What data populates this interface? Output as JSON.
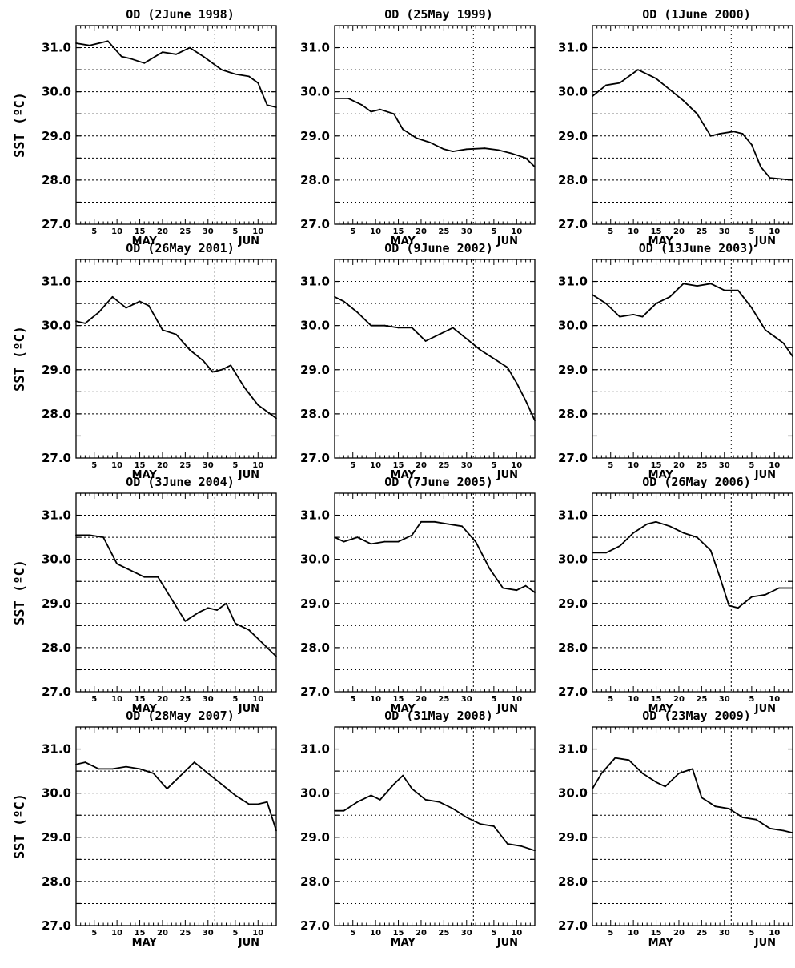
{
  "figure": {
    "y_axis_label": "SST (ºC)",
    "y_ticks": [
      "27.0",
      "28.0",
      "29.0",
      "30.0",
      "31.0"
    ],
    "x_day_ticks": [
      "5",
      "10",
      "15",
      "20",
      "25",
      "30",
      "5",
      "10"
    ],
    "months": [
      "MAY",
      "JUN"
    ]
  },
  "chart_data": [
    {
      "type": "line",
      "title": "OD (2June 1998)",
      "ylabel": "SST (ºC)",
      "ylim": [
        27.0,
        31.5
      ],
      "xlim": [
        "May 1",
        "Jun 14"
      ],
      "grid": true,
      "x": [
        "May 1",
        "May 4",
        "May 8",
        "May 11",
        "May 13",
        "May 16",
        "May 20",
        "May 23",
        "May 26",
        "May 29",
        "Jun 2",
        "Jun 5",
        "Jun 8",
        "Jun 10",
        "Jun 12",
        "Jun 14"
      ],
      "values": [
        31.1,
        31.05,
        31.15,
        30.8,
        30.75,
        30.65,
        30.9,
        30.85,
        31.0,
        30.8,
        30.5,
        30.4,
        30.35,
        30.2,
        29.7,
        29.65
      ]
    },
    {
      "type": "line",
      "title": "OD (25May 1999)",
      "ylabel": "SST (ºC)",
      "ylim": [
        27.0,
        31.5
      ],
      "xlim": [
        "May 1",
        "Jun 14"
      ],
      "grid": true,
      "x": [
        "May 1",
        "May 4",
        "May 7",
        "May 9",
        "May 11",
        "May 14",
        "May 16",
        "May 19",
        "May 22",
        "May 25",
        "May 27",
        "May 30",
        "Jun 3",
        "Jun 6",
        "Jun 9",
        "Jun 12",
        "Jun 14"
      ],
      "values": [
        29.85,
        29.85,
        29.7,
        29.55,
        29.6,
        29.5,
        29.15,
        28.95,
        28.85,
        28.7,
        28.65,
        28.7,
        28.72,
        28.68,
        28.6,
        28.5,
        28.3
      ]
    },
    {
      "type": "line",
      "title": "OD (1June 2000)",
      "ylabel": "SST (ºC)",
      "ylim": [
        27.0,
        31.5
      ],
      "xlim": [
        "May 1",
        "Jun 14"
      ],
      "grid": true,
      "x": [
        "May 1",
        "May 4",
        "May 7",
        "May 11",
        "May 15",
        "May 18",
        "May 21",
        "May 24",
        "May 27",
        "May 29",
        "Jun 1",
        "Jun 3",
        "Jun 5",
        "Jun 7",
        "Jun 9",
        "Jun 14"
      ],
      "values": [
        29.9,
        30.15,
        30.2,
        30.5,
        30.3,
        30.05,
        29.8,
        29.5,
        29.0,
        29.05,
        29.1,
        29.05,
        28.8,
        28.3,
        28.05,
        28.0
      ]
    },
    {
      "type": "line",
      "title": "OD (26May 2001)",
      "ylabel": "SST (ºC)",
      "ylim": [
        27.0,
        31.5
      ],
      "xlim": [
        "May 1",
        "Jun 14"
      ],
      "grid": true,
      "x": [
        "May 1",
        "May 3",
        "May 6",
        "May 9",
        "May 12",
        "May 15",
        "May 17",
        "May 20",
        "May 23",
        "May 26",
        "May 29",
        "May 31",
        "Jun 2",
        "Jun 4",
        "Jun 7",
        "Jun 10",
        "Jun 14"
      ],
      "values": [
        30.1,
        30.05,
        30.3,
        30.65,
        30.4,
        30.55,
        30.45,
        29.9,
        29.8,
        29.45,
        29.2,
        28.95,
        29.0,
        29.1,
        28.6,
        28.2,
        27.9
      ]
    },
    {
      "type": "line",
      "title": "OD (9June 2002)",
      "ylabel": "SST (ºC)",
      "ylim": [
        27.0,
        31.5
      ],
      "xlim": [
        "May 1",
        "Jun 14"
      ],
      "grid": true,
      "x": [
        "May 1",
        "May 3",
        "May 6",
        "May 9",
        "May 12",
        "May 15",
        "May 18",
        "May 21",
        "May 24",
        "May 27",
        "May 30",
        "Jun 2",
        "Jun 5",
        "Jun 8",
        "Jun 10",
        "Jun 12",
        "Jun 14"
      ],
      "values": [
        30.65,
        30.55,
        30.3,
        30.0,
        30.0,
        29.95,
        29.95,
        29.65,
        29.8,
        29.95,
        29.7,
        29.45,
        29.25,
        29.05,
        28.7,
        28.3,
        27.85
      ]
    },
    {
      "type": "line",
      "title": "OD (13June 2003)",
      "ylabel": "SST (ºC)",
      "ylim": [
        27.0,
        31.5
      ],
      "xlim": [
        "May 1",
        "Jun 14"
      ],
      "grid": true,
      "x": [
        "May 1",
        "May 4",
        "May 7",
        "May 10",
        "May 12",
        "May 15",
        "May 18",
        "May 21",
        "May 24",
        "May 27",
        "May 30",
        "Jun 2",
        "Jun 5",
        "Jun 8",
        "Jun 10",
        "Jun 12",
        "Jun 14"
      ],
      "values": [
        30.7,
        30.5,
        30.2,
        30.25,
        30.2,
        30.5,
        30.65,
        30.95,
        30.9,
        30.95,
        30.8,
        30.8,
        30.4,
        29.9,
        29.75,
        29.6,
        29.3
      ]
    },
    {
      "type": "line",
      "title": "OD (3June 2004)",
      "ylabel": "SST (ºC)",
      "ylim": [
        27.0,
        31.5
      ],
      "xlim": [
        "May 1",
        "Jun 14"
      ],
      "grid": true,
      "x": [
        "May 1",
        "May 4",
        "May 7",
        "May 10",
        "May 13",
        "May 16",
        "May 19",
        "May 22",
        "May 25",
        "May 28",
        "May 30",
        "Jun 1",
        "Jun 3",
        "Jun 5",
        "Jun 8",
        "Jun 11",
        "Jun 14"
      ],
      "values": [
        30.55,
        30.55,
        30.5,
        29.9,
        29.75,
        29.6,
        29.6,
        29.1,
        28.6,
        28.8,
        28.9,
        28.85,
        29.0,
        28.55,
        28.4,
        28.1,
        27.8
      ]
    },
    {
      "type": "line",
      "title": "OD (7June 2005)",
      "ylabel": "SST (ºC)",
      "ylim": [
        27.0,
        31.5
      ],
      "xlim": [
        "May 1",
        "Jun 14"
      ],
      "grid": true,
      "x": [
        "May 1",
        "May 3",
        "May 6",
        "May 9",
        "May 12",
        "May 15",
        "May 18",
        "May 20",
        "May 23",
        "May 26",
        "May 29",
        "Jun 1",
        "Jun 4",
        "Jun 7",
        "Jun 10",
        "Jun 12",
        "Jun 14"
      ],
      "values": [
        30.5,
        30.4,
        30.5,
        30.35,
        30.4,
        30.4,
        30.55,
        30.85,
        30.85,
        30.8,
        30.75,
        30.4,
        29.8,
        29.35,
        29.3,
        29.4,
        29.25
      ]
    },
    {
      "type": "line",
      "title": "OD (26May 2006)",
      "ylabel": "SST (ºC)",
      "ylim": [
        27.0,
        31.5
      ],
      "xlim": [
        "May 1",
        "Jun 14"
      ],
      "grid": true,
      "x": [
        "May 1",
        "May 4",
        "May 7",
        "May 10",
        "May 13",
        "May 15",
        "May 18",
        "May 21",
        "May 24",
        "May 27",
        "May 29",
        "May 31",
        "Jun 2",
        "Jun 5",
        "Jun 8",
        "Jun 11",
        "Jun 14"
      ],
      "values": [
        30.15,
        30.15,
        30.3,
        30.6,
        30.8,
        30.85,
        30.75,
        30.6,
        30.5,
        30.2,
        29.6,
        28.95,
        28.9,
        29.15,
        29.2,
        29.35,
        29.35
      ]
    },
    {
      "type": "line",
      "title": "OD (28May 2007)",
      "ylabel": "SST (ºC)",
      "ylim": [
        27.0,
        31.5
      ],
      "xlim": [
        "May 1",
        "Jun 14"
      ],
      "grid": true,
      "x": [
        "May 1",
        "May 3",
        "May 6",
        "May 9",
        "May 12",
        "May 15",
        "May 18",
        "May 21",
        "May 24",
        "May 27",
        "May 30",
        "Jun 2",
        "Jun 5",
        "Jun 8",
        "Jun 10",
        "Jun 12",
        "Jun 14"
      ],
      "values": [
        30.65,
        30.7,
        30.55,
        30.55,
        30.6,
        30.55,
        30.45,
        30.1,
        30.4,
        30.7,
        30.45,
        30.2,
        29.95,
        29.75,
        29.75,
        29.8,
        29.15
      ]
    },
    {
      "type": "line",
      "title": "OD (31May 2008)",
      "ylabel": "SST (ºC)",
      "ylim": [
        27.0,
        31.5
      ],
      "xlim": [
        "May 1",
        "Jun 14"
      ],
      "grid": true,
      "x": [
        "May 1",
        "May 3",
        "May 6",
        "May 9",
        "May 11",
        "May 14",
        "May 16",
        "May 18",
        "May 21",
        "May 24",
        "May 27",
        "May 30",
        "Jun 2",
        "Jun 5",
        "Jun 8",
        "Jun 11",
        "Jun 14"
      ],
      "values": [
        29.6,
        29.6,
        29.8,
        29.95,
        29.85,
        30.2,
        30.4,
        30.1,
        29.85,
        29.8,
        29.65,
        29.45,
        29.3,
        29.25,
        28.85,
        28.8,
        28.7
      ]
    },
    {
      "type": "line",
      "title": "OD (23May 2009)",
      "ylabel": "SST (ºC)",
      "ylim": [
        27.0,
        31.5
      ],
      "xlim": [
        "May 1",
        "Jun 14"
      ],
      "grid": true,
      "x": [
        "May 1",
        "May 3",
        "May 6",
        "May 9",
        "May 12",
        "May 15",
        "May 17",
        "May 20",
        "May 23",
        "May 25",
        "May 28",
        "May 31",
        "Jun 3",
        "Jun 6",
        "Jun 9",
        "Jun 12",
        "Jun 14"
      ],
      "values": [
        30.1,
        30.45,
        30.8,
        30.75,
        30.45,
        30.25,
        30.15,
        30.45,
        30.55,
        29.9,
        29.7,
        29.65,
        29.45,
        29.4,
        29.2,
        29.15,
        29.1
      ]
    }
  ]
}
